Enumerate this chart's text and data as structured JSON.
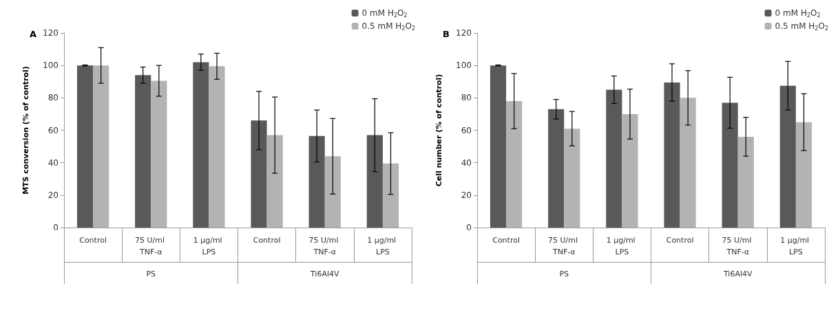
{
  "chart_data": [
    {
      "type": "bar",
      "title": "A",
      "ylabel": "MTS conversion (% of control)",
      "categories": [
        "Control",
        "75 U/ml TNF-α",
        "1 µg/ml LPS",
        "Control",
        "75 U/ml TNF-α",
        "1 µg/ml LPS"
      ],
      "annotations": [
        "PS",
        "Ti6Al4V"
      ],
      "series": [
        {
          "name": "0 mM H$_{2}$O$_{2}$",
          "color": "#595959",
          "values": [
            100,
            94,
            102,
            66,
            56.5,
            57
          ],
          "errors": [
            0.3,
            5,
            5,
            18,
            16,
            22.5
          ]
        },
        {
          "name": "0.5 mM H$_{2}$O$_{2}$",
          "color": "#b3b3b3",
          "values": [
            100,
            90.5,
            99.5,
            57,
            44,
            39.5
          ],
          "errors": [
            11,
            9.5,
            8,
            23.5,
            23.3,
            19
          ]
        }
      ],
      "ylim": [
        0,
        120
      ],
      "yticks": [
        0,
        20,
        40,
        60,
        80,
        100,
        120
      ],
      "grid": false,
      "legend": "top right"
    },
    {
      "type": "bar",
      "title": "B",
      "ylabel": "Cell number (% of control)",
      "categories": [
        "Control",
        "75 U/ml TNF-α",
        "1 µg/ml LPS",
        "Control",
        "75 U/ml TNF-α",
        "1 µg/ml LPS"
      ],
      "annotations": [
        "PS",
        "Ti6Al4V"
      ],
      "series": [
        {
          "name": "0 mM H$_{2}$O$_{2}$",
          "color": "#595959",
          "values": [
            100,
            73,
            85,
            89.5,
            77,
            87.5
          ],
          "errors": [
            0.3,
            6,
            8.5,
            11.5,
            15.7,
            15
          ]
        },
        {
          "name": "0.5 mM H$_{2}$O$_{2}$",
          "color": "#b3b3b3",
          "values": [
            78,
            61,
            70,
            80,
            56,
            65
          ],
          "errors": [
            17,
            10.6,
            15.4,
            16.8,
            12,
            17.5
          ]
        }
      ],
      "ylim": [
        0,
        120
      ],
      "yticks": [
        0,
        20,
        40,
        60,
        80,
        100,
        120
      ],
      "grid": false,
      "legend": "top right"
    }
  ]
}
